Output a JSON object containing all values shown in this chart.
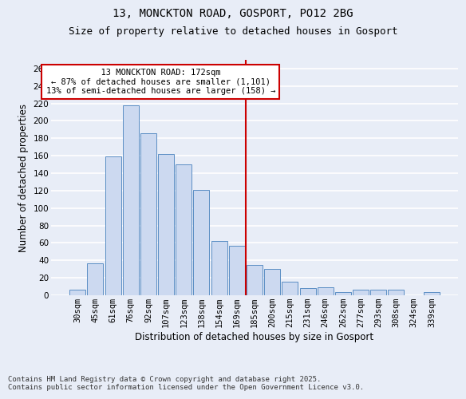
{
  "title_line1": "13, MONCKTON ROAD, GOSPORT, PO12 2BG",
  "title_line2": "Size of property relative to detached houses in Gosport",
  "xlabel": "Distribution of detached houses by size in Gosport",
  "ylabel": "Number of detached properties",
  "categories": [
    "30sqm",
    "45sqm",
    "61sqm",
    "76sqm",
    "92sqm",
    "107sqm",
    "123sqm",
    "138sqm",
    "154sqm",
    "169sqm",
    "185sqm",
    "200sqm",
    "215sqm",
    "231sqm",
    "246sqm",
    "262sqm",
    "277sqm",
    "293sqm",
    "308sqm",
    "324sqm",
    "339sqm"
  ],
  "values": [
    6,
    37,
    159,
    218,
    186,
    162,
    150,
    121,
    62,
    57,
    35,
    30,
    16,
    8,
    9,
    4,
    6,
    6,
    6,
    0,
    4
  ],
  "bar_color": "#ccd9f0",
  "bar_edge_color": "#5b8ec4",
  "background_color": "#e8edf7",
  "grid_color": "#ffffff",
  "annotation_text": "  13 MONCKTON ROAD: 172sqm  \n← 87% of detached houses are smaller (1,101)\n13% of semi-detached houses are larger (158) →",
  "annotation_box_color": "#ffffff",
  "annotation_box_edge_color": "#cc0000",
  "vline_color": "#cc0000",
  "ylim": [
    0,
    270
  ],
  "yticks": [
    0,
    20,
    40,
    60,
    80,
    100,
    120,
    140,
    160,
    180,
    200,
    220,
    240,
    260
  ],
  "footnote": "Contains HM Land Registry data © Crown copyright and database right 2025.\nContains public sector information licensed under the Open Government Licence v3.0.",
  "title_fontsize": 10,
  "subtitle_fontsize": 9,
  "axis_label_fontsize": 8.5,
  "tick_fontsize": 7.5,
  "annotation_fontsize": 7.5,
  "footnote_fontsize": 6.5
}
